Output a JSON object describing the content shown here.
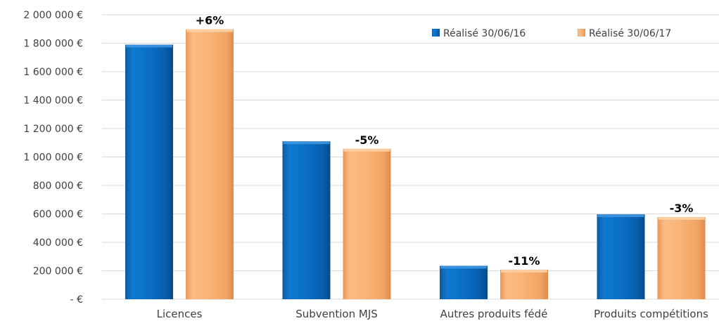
{
  "chart_data": {
    "type": "bar",
    "categories": [
      "Licences",
      "Subvention MJS",
      "Autres produits fédé",
      "Produits compétitions"
    ],
    "series": [
      {
        "name": "Réalisé 30/06/16",
        "values": [
          1790000,
          1110000,
          235000,
          597000
        ],
        "color": "#0a6fc6"
      },
      {
        "name": "Réalisé 30/06/17",
        "values": [
          1898000,
          1058000,
          208000,
          578000
        ],
        "color": "#f9b274"
      }
    ],
    "data_labels": [
      "+6%",
      "-5%",
      "-11%",
      "-3%"
    ],
    "yticks": [
      0,
      200000,
      400000,
      600000,
      800000,
      1000000,
      1200000,
      1400000,
      1600000,
      1800000,
      2000000
    ],
    "ytick_labels": [
      "-  €",
      "200 000 €",
      "400 000 €",
      "600 000 €",
      "800 000 €",
      "1 000 000 €",
      "1 200 000 €",
      "1 400 000 €",
      "1 600 000 €",
      "1 800 000 €",
      "2 000 000 €"
    ],
    "ylim": [
      0,
      2000000
    ],
    "grid": true,
    "legend_position": "top-right",
    "title": "",
    "xlabel": "",
    "ylabel": ""
  }
}
